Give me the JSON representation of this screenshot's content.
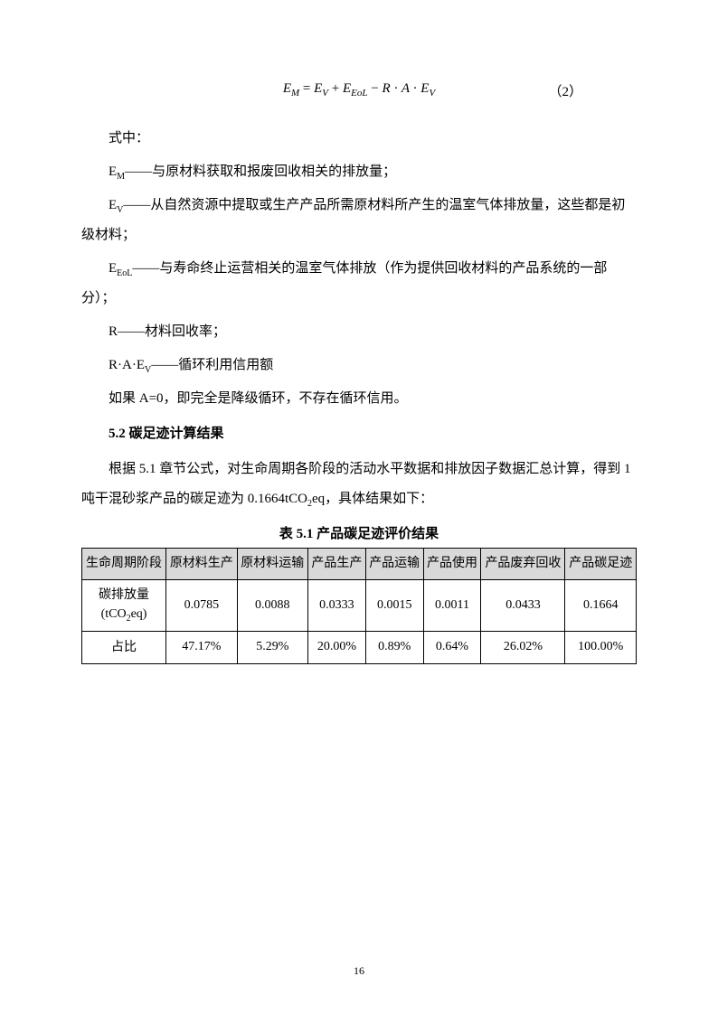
{
  "equation": {
    "body_html": "E<span class=\"sub\">M</span> <span class=\"up\">=</span> E<span class=\"sub\">V</span> <span class=\"up\">+</span> E<span class=\"sub\">EoL</span> <span class=\"up\">−</span> R <span class=\"up\">·</span> A <span class=\"up\">·</span> E<span class=\"sub\">V</span>",
    "number": "（2）"
  },
  "paras": {
    "p1": "式中：",
    "p2_html": "E<span class=\"subn\">M</span>——与原材料获取和报废回收相关的排放量；",
    "p3_html": "E<span class=\"subn\">V</span>——从自然资源中提取或生产产品所需原材料所产生的温室气体排放量，这些都是初级材料；",
    "p4_html": "E<span class=\"subn\">EoL</span>——与寿命终止运营相关的温室气体排放（作为提供回收材料的产品系统的一部分）；",
    "p5": "R——材料回收率；",
    "p6_html": "R·A·E<span class=\"subn\">V</span>——循环利用信用额",
    "p7": "如果 A=0，即完全是降级循环，不存在循环信用。",
    "heading": "5.2 碳足迹计算结果",
    "p8_html": "根据 5.1 章节公式，对生命周期各阶段的活动水平数据和排放因子数据汇总计算，得到 1 吨干混砂浆产品的碳足迹为 0.1664tCO<span class=\"subn\">2</span>eq，具体结果如下：",
    "table_caption": "表 5.1 产品碳足迹评价结果"
  },
  "table": {
    "headers": [
      "生命周期阶段",
      "原材料生产",
      "原材料运输",
      "产品生产",
      "产品运输",
      "产品使用",
      "产品废弃回收",
      "产品碳足迹"
    ],
    "rows": [
      {
        "label_html": "碳排放量<br>(tCO<span class=\"subn\">2</span>eq)",
        "cells": [
          "0.0785",
          "0.0088",
          "0.0333",
          "0.0015",
          "0.0011",
          "0.0433",
          "0.1664"
        ]
      },
      {
        "label_html": "占比",
        "cells": [
          "47.17%",
          "5.29%",
          "20.00%",
          "0.89%",
          "0.64%",
          "26.02%",
          "100.00%"
        ]
      }
    ]
  },
  "page_number": "16"
}
